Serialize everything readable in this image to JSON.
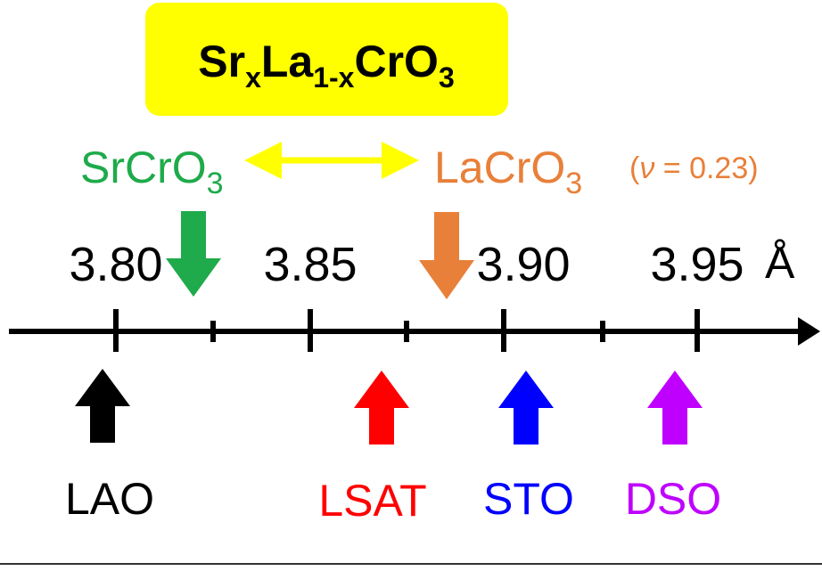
{
  "title": [
    "Sr",
    "x",
    "La",
    "1-x",
    "CrO",
    "3"
  ],
  "compounds": [
    {
      "name": "SrCrO",
      "sub": "3"
    },
    {
      "name": "LaCrO",
      "sub": "3",
      "note": [
        "(",
        "ν",
        " = 0.23)"
      ]
    }
  ],
  "axis": {
    "ticks": [
      "3.80",
      "3.85",
      "3.90",
      "3.95"
    ],
    "unit": "Å"
  },
  "substrates": [
    "LAO",
    "LSAT",
    "STO",
    "DSO"
  ]
}
